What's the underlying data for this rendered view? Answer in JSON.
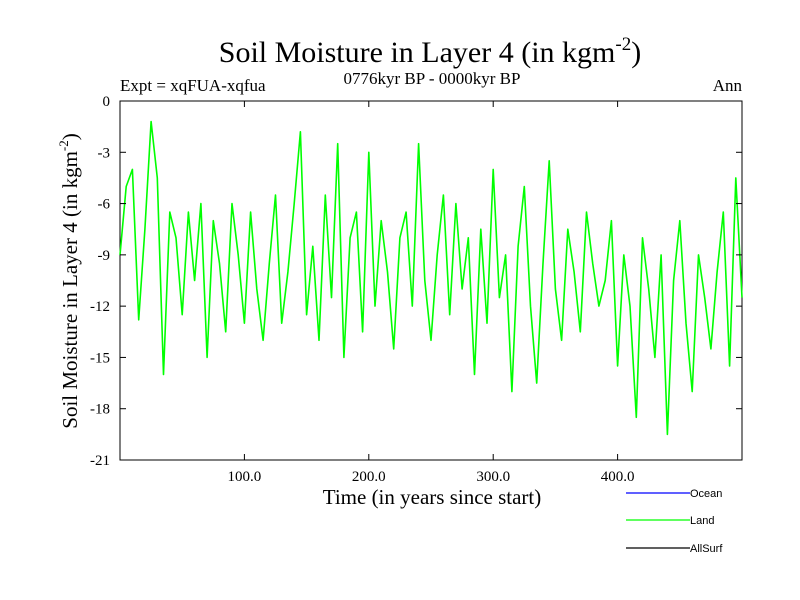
{
  "chart_data": {
    "type": "line",
    "title": "Soil Moisture in Layer 4 (in kgm",
    "title_superscript": "-2",
    "title_close": ")",
    "subtitle": "0776kyr BP - 0000kyr BP",
    "expt_label": "Expt = xqFUA-xqfua",
    "period_label": "Ann",
    "xlabel": "Time (in years since start)",
    "ylabel": "Soil Moisture in Layer 4 (in kgm",
    "ylabel_superscript": "-2",
    "ylabel_close": ")",
    "xlim": [
      0,
      500
    ],
    "ylim": [
      -21,
      0
    ],
    "xticks": [
      100,
      200,
      300,
      400
    ],
    "xtick_labels": [
      "100.0",
      "200.0",
      "300.0",
      "400.0"
    ],
    "yticks": [
      0,
      -3,
      -6,
      -9,
      -12,
      -15,
      -18,
      -21
    ],
    "ytick_labels": [
      "0",
      "-3",
      "-6",
      "-9",
      "-12",
      "-15",
      "-18",
      "-21"
    ],
    "legend": [
      {
        "name": "Ocean",
        "color": "#0000ff"
      },
      {
        "name": "Land",
        "color": "#00ff00"
      },
      {
        "name": "AllSurf",
        "color": "#000000"
      }
    ],
    "series": [
      {
        "name": "Land",
        "color": "#00ff00",
        "x": [
          0,
          5,
          10,
          15,
          20,
          25,
          30,
          35,
          40,
          45,
          50,
          55,
          60,
          65,
          70,
          75,
          80,
          85,
          90,
          95,
          100,
          105,
          110,
          115,
          120,
          125,
          130,
          135,
          140,
          145,
          150,
          155,
          160,
          165,
          170,
          175,
          180,
          185,
          190,
          195,
          200,
          205,
          210,
          215,
          220,
          225,
          230,
          235,
          240,
          245,
          250,
          255,
          260,
          265,
          270,
          275,
          280,
          285,
          290,
          295,
          300,
          305,
          310,
          315,
          320,
          325,
          330,
          335,
          340,
          345,
          350,
          355,
          360,
          365,
          370,
          375,
          380,
          385,
          390,
          395,
          400,
          405,
          410,
          415,
          420,
          425,
          430,
          435,
          440,
          445,
          450,
          455,
          460,
          465,
          470,
          475,
          480,
          485,
          490,
          495,
          500
        ],
        "values": [
          -9.0,
          -5.0,
          -4.0,
          -12.8,
          -7.5,
          -1.2,
          -4.5,
          -16.0,
          -6.5,
          -8.0,
          -12.5,
          -6.5,
          -10.5,
          -6.0,
          -15.0,
          -7.0,
          -9.5,
          -13.5,
          -6.0,
          -9.0,
          -13.0,
          -6.5,
          -11.0,
          -14.0,
          -9.5,
          -5.5,
          -13.0,
          -10.0,
          -6.0,
          -1.8,
          -12.5,
          -8.5,
          -14.0,
          -5.5,
          -11.5,
          -2.5,
          -15.0,
          -8.0,
          -6.5,
          -13.5,
          -3.0,
          -12.0,
          -7.0,
          -10.0,
          -14.5,
          -8.0,
          -6.5,
          -12.0,
          -2.5,
          -10.5,
          -14.0,
          -9.0,
          -5.5,
          -12.5,
          -6.0,
          -11.0,
          -8.0,
          -16.0,
          -7.5,
          -13.0,
          -4.0,
          -11.5,
          -9.0,
          -17.0,
          -8.5,
          -5.0,
          -12.0,
          -16.5,
          -9.5,
          -3.5,
          -11.0,
          -14.0,
          -7.5,
          -10.0,
          -13.5,
          -6.5,
          -9.5,
          -12.0,
          -10.5,
          -7.0,
          -15.5,
          -9.0,
          -12.0,
          -18.5,
          -8.0,
          -11.0,
          -15.0,
          -9.0,
          -19.5,
          -10.5,
          -7.0,
          -13.0,
          -17.0,
          -9.0,
          -11.5,
          -14.5,
          -10.0,
          -6.5,
          -15.5,
          -4.5,
          -11.5
        ]
      }
    ]
  }
}
